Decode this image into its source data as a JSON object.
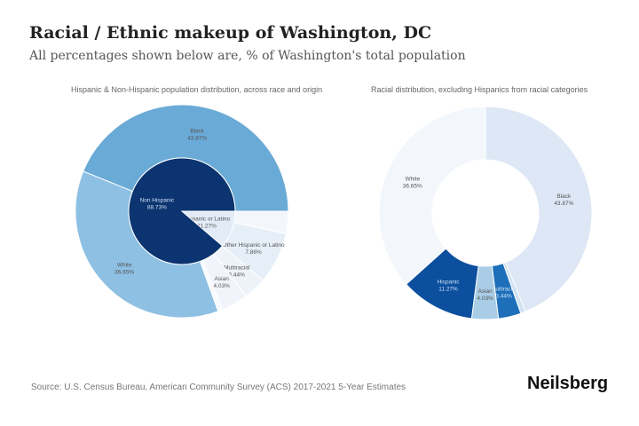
{
  "header": {
    "title": "Racial / Ethnic makeup of Washington, DC",
    "subtitle": "All percentages shown below are, % of Washington's total population"
  },
  "footer": {
    "source": "Source: U.S. Census Bureau, American Community Survey (ACS) 2017-2021 5-Year Estimates",
    "brand": "Neilsberg"
  },
  "chart_data": [
    {
      "type": "pie",
      "title": "Hispanic & Non-Hispanic population distribution, across race and origin",
      "inner": [
        {
          "label": "Hispanic or Latino",
          "value": 11.27,
          "color": "#e3ecf6"
        },
        {
          "label": "Non Hispanic",
          "value": 88.73,
          "color": "#0b3470"
        }
      ],
      "outer": [
        {
          "label": "",
          "value": 3.41,
          "color": "#f3f7fc"
        },
        {
          "label": "Other Hispanic or Latino",
          "value": 7.86,
          "color": "#e6eef8"
        },
        {
          "label": "Multiracial",
          "value": 3.44,
          "color": "#eef3fa"
        },
        {
          "label": "Asian",
          "value": 4.03,
          "color": "#f1f5fb"
        },
        {
          "label": "",
          "value": 0.74,
          "color": "#f7f9fd"
        },
        {
          "label": "White",
          "value": 36.65,
          "color": "#8ec0e3"
        },
        {
          "label": "Black",
          "value": 43.87,
          "color": "#6aaad6"
        }
      ]
    },
    {
      "type": "pie",
      "title": "Racial distribution, excluding Hispanics from racial categories",
      "slices": [
        {
          "label": "Black",
          "value": 43.87,
          "color": "#dde7f5"
        },
        {
          "label": "",
          "value": 0.74,
          "color": "#cfe2f2"
        },
        {
          "label": "Multiracial",
          "value": 3.44,
          "color": "#1e6fba"
        },
        {
          "label": "Asian",
          "value": 4.03,
          "color": "#a9cde6"
        },
        {
          "label": "Hispanic",
          "value": 11.27,
          "color": "#0b4f9e"
        },
        {
          "label": "White",
          "value": 36.65,
          "color": "#f3f7fc"
        }
      ]
    }
  ]
}
